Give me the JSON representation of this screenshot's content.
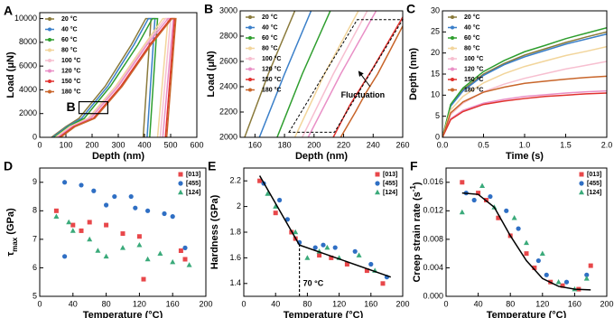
{
  "chart_data": [
    {
      "type": "line",
      "panel_label": "A",
      "xlabel": "Depth (nm)",
      "ylabel": [
        {
          "text": "Load (μN)"
        }
      ],
      "xlim": [
        0,
        600
      ],
      "xticks": [
        0,
        100,
        200,
        300,
        400,
        500,
        600
      ],
      "ylim": [
        0,
        10500
      ],
      "yticks": [
        0,
        2000,
        4000,
        6000,
        8000,
        10000
      ],
      "legend": "upper left",
      "annotation": "B",
      "series": [
        {
          "name": "20 °C",
          "color": "#8a7a3b",
          "x": [
            45,
            100,
            150,
            250,
            350,
            405,
            425,
            395
          ],
          "values": [
            0,
            900,
            1600,
            4300,
            7800,
            10000,
            10000,
            0
          ]
        },
        {
          "name": "40 °C",
          "color": "#3a7fc9",
          "x": [
            50,
            105,
            160,
            260,
            360,
            415,
            440,
            410
          ],
          "values": [
            0,
            900,
            1600,
            4300,
            7800,
            10000,
            10000,
            0
          ]
        },
        {
          "name": "60 °C",
          "color": "#2e9e2e",
          "x": [
            55,
            110,
            170,
            270,
            375,
            430,
            450,
            420
          ],
          "values": [
            0,
            900,
            1600,
            4300,
            7800,
            10000,
            10000,
            0
          ]
        },
        {
          "name": "80 °C",
          "color": "#f2d59b",
          "x": [
            60,
            115,
            185,
            290,
            400,
            470,
            490,
            450
          ],
          "values": [
            0,
            900,
            1600,
            4300,
            7800,
            10000,
            10000,
            0
          ]
        },
        {
          "name": "100 °C",
          "color": "#f7bfd0",
          "x": [
            65,
            120,
            190,
            295,
            405,
            480,
            500,
            460
          ],
          "values": [
            0,
            900,
            1600,
            4300,
            7800,
            10000,
            10000,
            0
          ]
        },
        {
          "name": "120 °C",
          "color": "#e98fc6",
          "x": [
            70,
            125,
            195,
            300,
            410,
            490,
            510,
            470
          ],
          "values": [
            0,
            900,
            1600,
            4300,
            7800,
            10000,
            10000,
            0
          ]
        },
        {
          "name": "150 °C",
          "color": "#e0312d",
          "x": [
            75,
            130,
            205,
            310,
            420,
            500,
            515,
            480
          ],
          "values": [
            0,
            900,
            1600,
            4300,
            7800,
            10000,
            10000,
            0
          ]
        },
        {
          "name": "180 °C",
          "color": "#c8652a",
          "x": [
            80,
            135,
            210,
            315,
            425,
            505,
            520,
            485
          ],
          "values": [
            0,
            900,
            1600,
            4300,
            7800,
            10000,
            10000,
            0
          ]
        }
      ]
    },
    {
      "type": "line",
      "panel_label": "B",
      "xlabel": "Depth (nm)",
      "ylabel": [
        {
          "text": "Load (μN)"
        }
      ],
      "xlim": [
        150,
        260
      ],
      "xticks": [
        160,
        180,
        200,
        220,
        240,
        260
      ],
      "ylim": [
        2000,
        3000
      ],
      "yticks": [
        2000,
        2200,
        2400,
        2600,
        2800,
        3000
      ],
      "legend": "upper left",
      "annotation": "Fluctuation",
      "series": [
        {
          "name": "20 °C",
          "color": "#8a7a3b",
          "x": [
            153,
            169,
            187
          ],
          "values": [
            2000,
            2500,
            3000
          ]
        },
        {
          "name": "40 °C",
          "color": "#3a7fc9",
          "x": [
            163,
            180,
            198
          ],
          "values": [
            2000,
            2500,
            3000
          ]
        },
        {
          "name": "60 °C",
          "color": "#2e9e2e",
          "x": [
            175,
            192,
            211
          ],
          "values": [
            2000,
            2500,
            3000
          ]
        },
        {
          "name": "80 °C",
          "color": "#f2d59b",
          "x": [
            187,
            207,
            230
          ],
          "values": [
            2000,
            2500,
            3000
          ]
        },
        {
          "name": "100 °C",
          "color": "#f7bfd0",
          "x": [
            192,
            213,
            236
          ],
          "values": [
            2000,
            2500,
            3000
          ]
        },
        {
          "name": "120 °C",
          "color": "#e98fc6",
          "x": [
            196,
            218,
            242
          ],
          "values": [
            2000,
            2500,
            3000
          ]
        },
        {
          "name": "150 °C",
          "color": "#e0312d",
          "x": [
            213,
            224,
            232,
            240,
            250,
            260
          ],
          "values": [
            2000,
            2250,
            2400,
            2550,
            2750,
            2950
          ]
        },
        {
          "name": "180 °C",
          "color": "#c8652a",
          "x": [
            218,
            228,
            235,
            243,
            252,
            260
          ],
          "values": [
            2000,
            2200,
            2350,
            2500,
            2700,
            2880
          ]
        }
      ]
    },
    {
      "type": "line",
      "panel_label": "C",
      "xlabel": "Time (s)",
      "ylabel": [
        {
          "text": "Depth (nm)"
        }
      ],
      "xlim": [
        0,
        2
      ],
      "xticks": [
        {
          "value": 0,
          "label": "0.0"
        },
        0.5,
        {
          "value": 1,
          "label": "1.0"
        },
        1.5,
        {
          "value": 2,
          "label": "2.0"
        }
      ],
      "ylim": [
        0,
        30
      ],
      "yticks": [
        0,
        5,
        10,
        15,
        20,
        25,
        30
      ],
      "legend": "upper left",
      "series": [
        {
          "name": "20 °C",
          "color": "#8a7a3b",
          "x": [
            0,
            0.1,
            0.25,
            0.5,
            0.75,
            1,
            1.25,
            1.5,
            1.75,
            2
          ],
          "values": [
            0,
            7.5,
            11.3,
            15,
            17.5,
            19.5,
            21,
            22.5,
            23.8,
            25
          ]
        },
        {
          "name": "40 °C",
          "color": "#3a7fc9",
          "x": [
            0,
            0.1,
            0.25,
            0.5,
            0.75,
            1,
            1.25,
            1.5,
            1.75,
            2
          ],
          "values": [
            0,
            7.4,
            11,
            14.7,
            17.2,
            19.1,
            20.6,
            22.1,
            23.3,
            24.5
          ]
        },
        {
          "name": "60 °C",
          "color": "#2e9e2e",
          "x": [
            0,
            0.1,
            0.25,
            0.5,
            0.75,
            1,
            1.25,
            1.5,
            1.75,
            2
          ],
          "values": [
            0,
            7.8,
            11.7,
            15.6,
            18.2,
            20.3,
            21.8,
            23.4,
            24.7,
            26
          ]
        },
        {
          "name": "80 °C",
          "color": "#f2d59b",
          "x": [
            0,
            0.1,
            0.25,
            0.5,
            0.75,
            1,
            1.25,
            1.5,
            1.75,
            2
          ],
          "values": [
            0,
            6.5,
            9.7,
            12.9,
            15.1,
            16.8,
            18.1,
            19.4,
            20.4,
            21.5
          ]
        },
        {
          "name": "100 °C",
          "color": "#f7bfd0",
          "x": [
            0,
            0.1,
            0.25,
            0.5,
            0.75,
            1,
            1.25,
            1.5,
            1.75,
            2
          ],
          "values": [
            0,
            5.4,
            8.1,
            10.8,
            12.6,
            14,
            15.1,
            16.2,
            17.1,
            18
          ]
        },
        {
          "name": "120 °C",
          "color": "#e98fc6",
          "x": [
            0,
            0.1,
            0.25,
            0.5,
            0.75,
            1,
            1.25,
            1.5,
            1.75,
            2
          ],
          "values": [
            0,
            4.4,
            6.4,
            8.1,
            9,
            9.7,
            10.1,
            10.5,
            10.8,
            11
          ]
        },
        {
          "name": "150 °C",
          "color": "#e0312d",
          "x": [
            0,
            0.1,
            0.25,
            0.5,
            0.75,
            1,
            1.25,
            1.5,
            1.75,
            2
          ],
          "values": [
            0,
            4.2,
            6.1,
            7.8,
            8.6,
            9.2,
            9.7,
            10,
            10.3,
            10.5
          ]
        },
        {
          "name": "180 °C",
          "color": "#c8652a",
          "x": [
            0,
            0.1,
            0.25,
            0.5,
            0.75,
            1,
            1.25,
            1.5,
            1.75,
            2
          ],
          "values": [
            0,
            5.8,
            8.4,
            10.7,
            11.9,
            12.8,
            13.3,
            13.8,
            14.2,
            14.5
          ]
        }
      ]
    },
    {
      "type": "scatter",
      "panel_label": "D",
      "xlabel": "Temperature (°C)",
      "ylabel": [
        {
          "text": "τ"
        },
        {
          "text": "max",
          "script": "sub"
        },
        {
          "text": " (GPa)"
        }
      ],
      "xlim": [
        0,
        200
      ],
      "xticks": [
        0,
        40,
        80,
        120,
        160,
        200
      ],
      "ylim": [
        5,
        9.5
      ],
      "yticks": [
        5,
        6,
        7,
        8,
        9
      ],
      "legend": "upper right",
      "series": [
        {
          "name": "[013]",
          "color": "#e8474a",
          "marker": "square",
          "x": [
            20,
            40,
            50,
            60,
            80,
            100,
            120,
            125,
            170,
            175
          ],
          "values": [
            8.0,
            7.5,
            7.3,
            7.6,
            7.5,
            7.2,
            7.1,
            5.6,
            6.6,
            6.3
          ]
        },
        {
          "name": "[455]",
          "color": "#2f6fc4",
          "marker": "circle",
          "x": [
            30,
            30,
            50,
            65,
            80,
            90,
            110,
            115,
            130,
            150,
            160,
            175
          ],
          "values": [
            9.0,
            6.4,
            8.9,
            8.7,
            8.2,
            8.5,
            8.5,
            8.1,
            8.0,
            7.9,
            7.8,
            6.7
          ]
        },
        {
          "name": "[124]",
          "color": "#3aaa7a",
          "marker": "triangle",
          "x": [
            20,
            35,
            40,
            60,
            70,
            80,
            100,
            120,
            130,
            145,
            160,
            180
          ],
          "values": [
            7.8,
            7.6,
            7.3,
            7.0,
            6.6,
            6.4,
            6.7,
            6.8,
            6.3,
            6.5,
            6.2,
            6.1
          ]
        }
      ]
    },
    {
      "type": "scatter",
      "panel_label": "E",
      "xlabel": "Temperature (°C)",
      "ylabel": [
        {
          "text": "Hardness (GPa)"
        }
      ],
      "xlim": [
        0,
        200
      ],
      "xticks": [
        0,
        40,
        80,
        120,
        160,
        200
      ],
      "ylim": [
        1.3,
        2.3
      ],
      "yticks": [
        1.4,
        1.6,
        1.8,
        2.0,
        2.2
      ],
      "legend": "upper right",
      "annotation": "70 °C",
      "threshold": 70,
      "fit": {
        "color": "#000000",
        "x": [
          20,
          70,
          185
        ],
        "values": [
          2.24,
          1.7,
          1.45
        ]
      },
      "series": [
        {
          "name": "[013]",
          "color": "#e8474a",
          "marker": "square",
          "x": [
            20,
            40,
            60,
            65,
            95,
            110,
            130,
            155,
            175
          ],
          "values": [
            2.2,
            1.95,
            1.8,
            1.75,
            1.62,
            1.6,
            1.55,
            1.5,
            1.4
          ]
        },
        {
          "name": "[455]",
          "color": "#2f6fc4",
          "marker": "circle",
          "x": [
            25,
            45,
            55,
            70,
            90,
            100,
            115,
            140,
            160,
            180
          ],
          "values": [
            2.18,
            2.05,
            1.9,
            1.72,
            1.68,
            1.7,
            1.68,
            1.65,
            1.55,
            1.45
          ]
        },
        {
          "name": "[124]",
          "color": "#3aaa7a",
          "marker": "triangle",
          "x": [
            30,
            40,
            65,
            80,
            95,
            105,
            120,
            145,
            165
          ],
          "values": [
            2.1,
            2.0,
            1.8,
            1.6,
            1.65,
            1.68,
            1.6,
            1.62,
            1.5
          ]
        }
      ]
    },
    {
      "type": "scatter",
      "panel_label": "F",
      "xlabel": "Temperature (°C)",
      "ylabel": [
        {
          "text": "Creep strain rate (s"
        },
        {
          "text": "-1",
          "script": "sup"
        },
        {
          "text": ")"
        }
      ],
      "xlim": [
        0,
        200
      ],
      "xticks": [
        0,
        40,
        80,
        120,
        160,
        200
      ],
      "ylim": [
        0,
        0.018
      ],
      "yticks": [
        {
          "value": 0,
          "label": "0.000"
        },
        0.004,
        0.008,
        0.012,
        0.016
      ],
      "legend": "upper right",
      "fit": {
        "color": "#000000",
        "x": [
          20,
          40,
          60,
          80,
          100,
          120,
          140,
          160,
          180
        ],
        "values": [
          0.0145,
          0.0143,
          0.0125,
          0.0085,
          0.005,
          0.0025,
          0.0014,
          0.001,
          0.0009
        ]
      },
      "series": [
        {
          "name": "[013]",
          "color": "#e8474a",
          "marker": "square",
          "x": [
            20,
            40,
            50,
            65,
            80,
            100,
            110,
            130,
            145,
            165,
            180
          ],
          "values": [
            0.016,
            0.0145,
            0.0135,
            0.011,
            0.0085,
            0.006,
            0.004,
            0.002,
            0.0015,
            0.001,
            0.0043
          ]
        },
        {
          "name": "[455]",
          "color": "#2f6fc4",
          "marker": "circle",
          "x": [
            25,
            35,
            55,
            75,
            90,
            115,
            125,
            150,
            175
          ],
          "values": [
            0.0145,
            0.0135,
            0.014,
            0.012,
            0.0095,
            0.005,
            0.003,
            0.002,
            0.003
          ]
        },
        {
          "name": "[124]",
          "color": "#3aaa7a",
          "marker": "triangle",
          "x": [
            20,
            45,
            60,
            85,
            100,
            120,
            140,
            160,
            175
          ],
          "values": [
            0.0118,
            0.0155,
            0.0125,
            0.011,
            0.0075,
            0.006,
            0.002,
            0.001,
            0.0025
          ]
        }
      ]
    }
  ]
}
